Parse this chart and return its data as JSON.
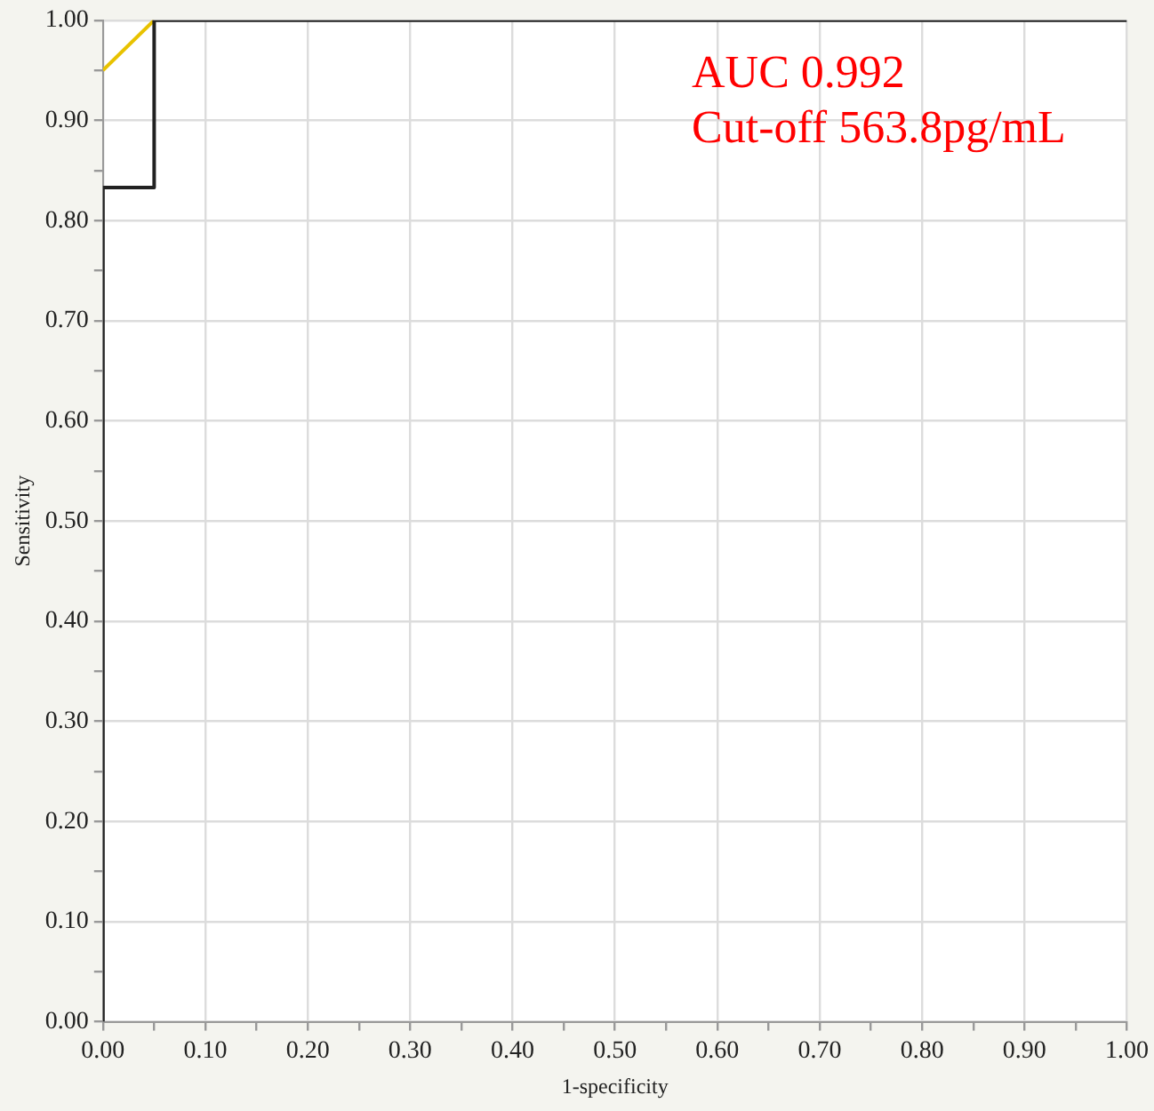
{
  "chart_data": {
    "type": "line",
    "xlabel": "1-specificity",
    "ylabel": "Sensitivity",
    "series": [
      {
        "color": "#222222",
        "x": [
          0,
          0,
          0.05,
          0.05,
          1
        ],
        "values": [
          0,
          0.833,
          0.833,
          1,
          1
        ]
      },
      {
        "color": "#e8c200",
        "x": [
          0,
          0.05
        ],
        "values": [
          0.95,
          1
        ]
      }
    ],
    "xlim": [
      0,
      1
    ],
    "ylim": [
      0,
      1
    ],
    "xticks": [
      {
        "value": 0,
        "label": "0.00"
      },
      {
        "value": 0.05,
        "label": null
      },
      {
        "value": 0.1,
        "label": "0.10"
      },
      {
        "value": 0.15,
        "label": null
      },
      {
        "value": 0.2,
        "label": "0.20"
      },
      {
        "value": 0.25,
        "label": null
      },
      {
        "value": 0.3,
        "label": "0.30"
      },
      {
        "value": 0.35,
        "label": null
      },
      {
        "value": 0.4,
        "label": "0.40"
      },
      {
        "value": 0.45,
        "label": null
      },
      {
        "value": 0.5,
        "label": "0.50"
      },
      {
        "value": 0.55,
        "label": null
      },
      {
        "value": 0.6,
        "label": "0.60"
      },
      {
        "value": 0.65,
        "label": null
      },
      {
        "value": 0.7,
        "label": "0.70"
      },
      {
        "value": 0.75,
        "label": null
      },
      {
        "value": 0.8,
        "label": "0.80"
      },
      {
        "value": 0.85,
        "label": null
      },
      {
        "value": 0.9,
        "label": "0.90"
      },
      {
        "value": 0.95,
        "label": null
      },
      {
        "value": 1,
        "label": "1.00"
      }
    ],
    "yticks": [
      {
        "value": 0,
        "label": "0.00"
      },
      {
        "value": 0.05,
        "label": null
      },
      {
        "value": 0.1,
        "label": "0.10"
      },
      {
        "value": 0.15,
        "label": null
      },
      {
        "value": 0.2,
        "label": "0.20"
      },
      {
        "value": 0.25,
        "label": null
      },
      {
        "value": 0.3,
        "label": "0.30"
      },
      {
        "value": 0.35,
        "label": null
      },
      {
        "value": 0.4,
        "label": "0.40"
      },
      {
        "value": 0.45,
        "label": null
      },
      {
        "value": 0.5,
        "label": "0.50"
      },
      {
        "value": 0.55,
        "label": null
      },
      {
        "value": 0.6,
        "label": "0.60"
      },
      {
        "value": 0.65,
        "label": null
      },
      {
        "value": 0.7,
        "label": "0.70"
      },
      {
        "value": 0.75,
        "label": null
      },
      {
        "value": 0.8,
        "label": "0.80"
      },
      {
        "value": 0.85,
        "label": null
      },
      {
        "value": 0.9,
        "label": "0.90"
      },
      {
        "value": 0.95,
        "label": null
      },
      {
        "value": 1,
        "label": "1.00"
      }
    ],
    "grid": true,
    "legend": false,
    "marker": "none",
    "line_style": "solid",
    "annotations": [
      "AUC 0.992",
      "Cut-off 563.8pg/mL"
    ]
  }
}
